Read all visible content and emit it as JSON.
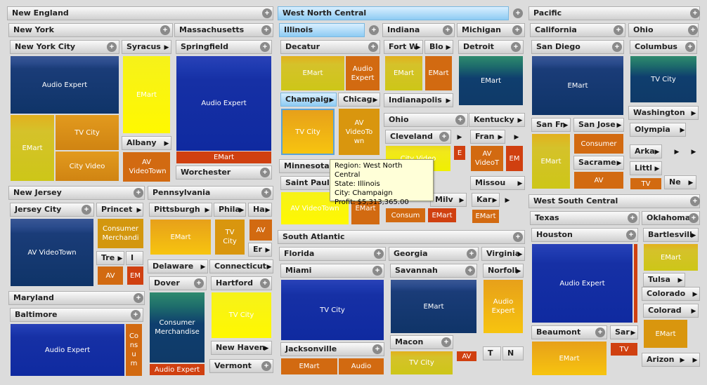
{
  "regions": {
    "new_england": "New England",
    "west_north_central": "West North Central",
    "pacific": "Pacific",
    "south_atlantic": "South Atlantic",
    "west_south_central": "West South Central"
  },
  "states": {
    "new_york": "New York",
    "massachusetts": "Massachusetts",
    "new_jersey": "New Jersey",
    "pennsylvania": "Pennsylvania",
    "maryland": "Maryland",
    "illinois": "Illinois",
    "indiana": "Indiana",
    "michigan": "Michigan",
    "ohio": "Ohio",
    "kentucky": "Kentucky",
    "minnesota": "Minnesota",
    "missou": "Missou",
    "california": "California",
    "ohio2": "Ohio",
    "washington": "Washington",
    "texas": "Texas",
    "oklahoma": "Oklahoma",
    "colorado": "Colorado",
    "arizona": "Arizon",
    "florida": "Florida",
    "georgia": "Georgia",
    "virginia": "Virginia",
    "delaware": "Delaware",
    "connecticut": "Connecticut"
  },
  "cities": {
    "new_york_city": "New York City",
    "syracuse": "Syracus",
    "albany": "Albany",
    "springfield": "Springfield",
    "worchester": "Worchester",
    "jersey_city": "Jersey City",
    "princeton": "Princet",
    "tre": "Tre",
    "i": "I",
    "pittsburgh": "Pittsburgh",
    "phila": "Phila",
    "ha": "Ha",
    "er": "Er",
    "dover": "Dover",
    "hartford": "Hartford",
    "new_haven": "New Haven",
    "vermont": "Vermont",
    "baltimore": "Baltimore",
    "decatur": "Decatur",
    "fort_w": "Fort W",
    "blo": "Blo",
    "detroit": "Detroit",
    "champaign": "Champaig",
    "chicago": "Chicag",
    "indianapolis": "Indianapolis",
    "cleveland": "Cleveland",
    "fran": "Fran",
    "saint_paul": "Saint Paul",
    "milw": "Milv",
    "kar": "Kar",
    "san_diego": "San Diego",
    "columbus": "Columbus",
    "olympia": "Olympia",
    "san_fr": "San Fr",
    "san_jose": "San Jose",
    "sacrame": "Sacrame",
    "arka": "Arka",
    "littl": "Littl",
    "ne": "Ne",
    "houston": "Houston",
    "bartlesvill": "Bartlesvill",
    "tulsa": "Tulsa",
    "colorad": "Colorad",
    "beaumont": "Beaumont",
    "sar": "Sar",
    "miami": "Miami",
    "savannah": "Savannah",
    "norfoll": "Norfoll",
    "jacksonville": "Jacksonville",
    "macon": "Macon",
    "t": "T",
    "n": "N"
  },
  "products": {
    "audio_expert": "Audio Expert",
    "emart": "EMart",
    "tv_city": "TV City",
    "city_video": "City Video",
    "av_videotown": "AV VideoTown",
    "av_videotown_split": "AV VideoTo wn",
    "av_video_t": "AV VideoT",
    "consumer_merchandise": "Consumer Merchandise",
    "consumer_merchandi": "Consumer Merchandi",
    "consumer": "Consumer",
    "consum": "Consum",
    "consum_vertical": "Co ns u m",
    "audio": "Audio",
    "av": "AV",
    "em": "EM",
    "e": "E",
    "tv": "TV",
    "tv_city_split": "TV City",
    "city_video_partial": "City Video",
    "av_video_town_partial": "AV VideoTown"
  },
  "tooltip": {
    "region": "Region: West North Central",
    "state": "State: Illinois",
    "city": "City: Champaign",
    "profit": "Profit: $5,313,365.00"
  },
  "icons": {
    "expand": "+",
    "arrow": "▶"
  }
}
